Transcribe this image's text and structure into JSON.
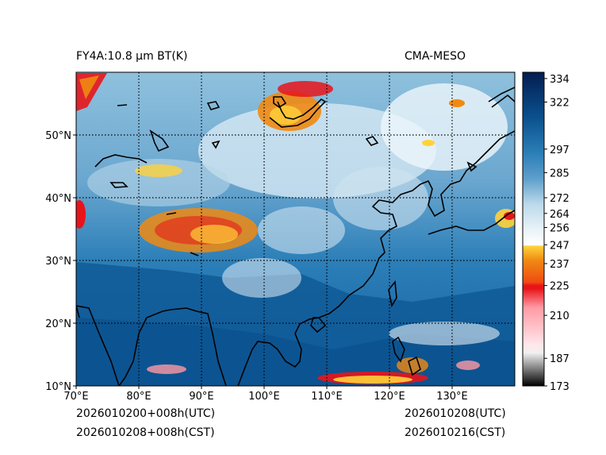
{
  "header": {
    "title_left": "FY4A:10.8 µm BT(K)",
    "title_right": "CMA-MESO"
  },
  "footer": {
    "init_utc": "2026010200+008h(UTC)",
    "init_cst": "2026010208+008h(CST)",
    "valid_utc": "2026010208(UTC)",
    "valid_cst": "2026010216(CST)"
  },
  "map": {
    "lon_range": [
      70,
      140
    ],
    "lat_range": [
      10,
      60
    ],
    "lon_ticks": [
      {
        "value": 70,
        "label": "70°E"
      },
      {
        "value": 80,
        "label": "80°E"
      },
      {
        "value": 90,
        "label": "90°E"
      },
      {
        "value": 100,
        "label": "100°E"
      },
      {
        "value": 110,
        "label": "110°E"
      },
      {
        "value": 120,
        "label": "120°E"
      },
      {
        "value": 130,
        "label": "130°E"
      }
    ],
    "lat_ticks": [
      {
        "value": 10,
        "label": "10°N"
      },
      {
        "value": 20,
        "label": "20°N"
      },
      {
        "value": 30,
        "label": "30°N"
      },
      {
        "value": 40,
        "label": "40°N"
      },
      {
        "value": 50,
        "label": "50°N"
      }
    ]
  },
  "colorbar": {
    "min": 173,
    "max": 340,
    "ticks": [
      {
        "value": 334,
        "label": "334"
      },
      {
        "value": 322,
        "label": "322"
      },
      {
        "value": 297,
        "label": "297"
      },
      {
        "value": 285,
        "label": "285"
      },
      {
        "value": 272,
        "label": "272"
      },
      {
        "value": 264,
        "label": "264"
      },
      {
        "value": 256,
        "label": "256"
      },
      {
        "value": 247,
        "label": "247"
      },
      {
        "value": 237,
        "label": "237"
      },
      {
        "value": 225,
        "label": "225"
      },
      {
        "value": 210,
        "label": "210"
      },
      {
        "value": 187,
        "label": "187"
      },
      {
        "value": 173,
        "label": "173"
      }
    ],
    "colors": {
      "deep_navy": "#041d50",
      "dark_blue": "#0a4f8c",
      "mid_blue": "#2c7fb8",
      "light_blue": "#8fc1dd",
      "pale_blue": "#d9ebf5",
      "white": "#ffffff",
      "yellow": "#ffd23a",
      "orange": "#f08a12",
      "red": "#e8141a",
      "pink": "#ffd4d8",
      "gray": "#8a8a8a",
      "black": "#000000"
    }
  }
}
